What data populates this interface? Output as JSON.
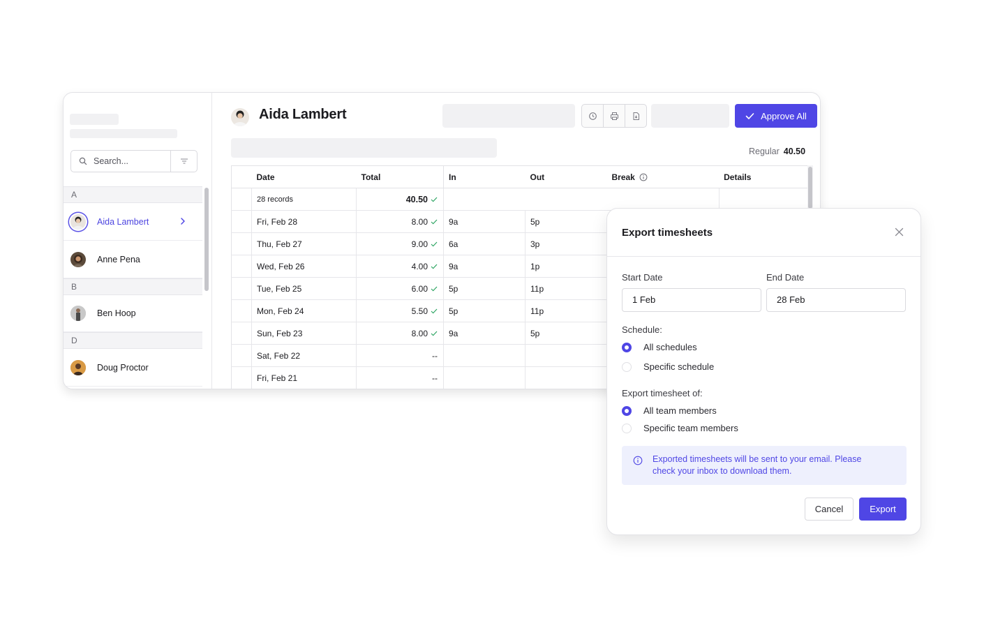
{
  "sidebar": {
    "search_placeholder": "Search...",
    "groups": [
      {
        "letter": "A",
        "people": [
          {
            "name": "Aida Lambert",
            "active": true
          },
          {
            "name": "Anne Pena"
          }
        ]
      },
      {
        "letter": "B",
        "people": [
          {
            "name": "Ben Hoop"
          }
        ]
      },
      {
        "letter": "D",
        "people": [
          {
            "name": "Doug Proctor"
          }
        ]
      }
    ]
  },
  "header": {
    "employee_name": "Aida Lambert",
    "approve_label": "Approve All",
    "regular_label": "Regular",
    "regular_value": "40.50"
  },
  "table": {
    "columns": {
      "date": "Date",
      "total": "Total",
      "in": "In",
      "out": "Out",
      "break": "Break",
      "details": "Details"
    },
    "summary": {
      "records": "28 records",
      "total": "40.50"
    },
    "rows": [
      {
        "date": "Fri, Feb 28",
        "total": "8.00",
        "in": "9a",
        "out": "5p",
        "approved": true
      },
      {
        "date": "Thu, Feb 27",
        "total": "9.00",
        "in": "6a",
        "out": "3p",
        "approved": true
      },
      {
        "date": "Wed, Feb 26",
        "total": "4.00",
        "in": "9a",
        "out": "1p",
        "approved": true
      },
      {
        "date": "Tue, Feb 25",
        "total": "6.00",
        "in": "5p",
        "out": "11p",
        "approved": true
      },
      {
        "date": "Mon, Feb 24",
        "total": "5.50",
        "in": "5p",
        "out": "11p",
        "approved": true
      },
      {
        "date": "Sun, Feb 23",
        "total": "8.00",
        "in": "9a",
        "out": "5p",
        "approved": true
      },
      {
        "date": "Sat, Feb 22",
        "total": "--",
        "in": "",
        "out": "",
        "approved": false
      },
      {
        "date": "Fri, Feb 21",
        "total": "--",
        "in": "",
        "out": "",
        "approved": false
      }
    ]
  },
  "dialog": {
    "title": "Export timesheets",
    "start_date_label": "Start Date",
    "start_date_value": "1 Feb",
    "end_date_label": "End Date",
    "end_date_value": "28 Feb",
    "schedule_label": "Schedule:",
    "schedule_options": [
      {
        "label": "All schedules",
        "selected": true
      },
      {
        "label": "Specific schedule",
        "selected": false
      }
    ],
    "members_label": "Export timesheet of:",
    "members_options": [
      {
        "label": "All team members",
        "selected": true
      },
      {
        "label": "Specific team members",
        "selected": false
      }
    ],
    "note_line1": "Exported timesheets will be sent to your email. Please",
    "note_line2": "check your inbox to download them.",
    "cancel_label": "Cancel",
    "export_label": "Export"
  },
  "colors": {
    "accent": "#4f46e5",
    "check": "#22a05a"
  }
}
